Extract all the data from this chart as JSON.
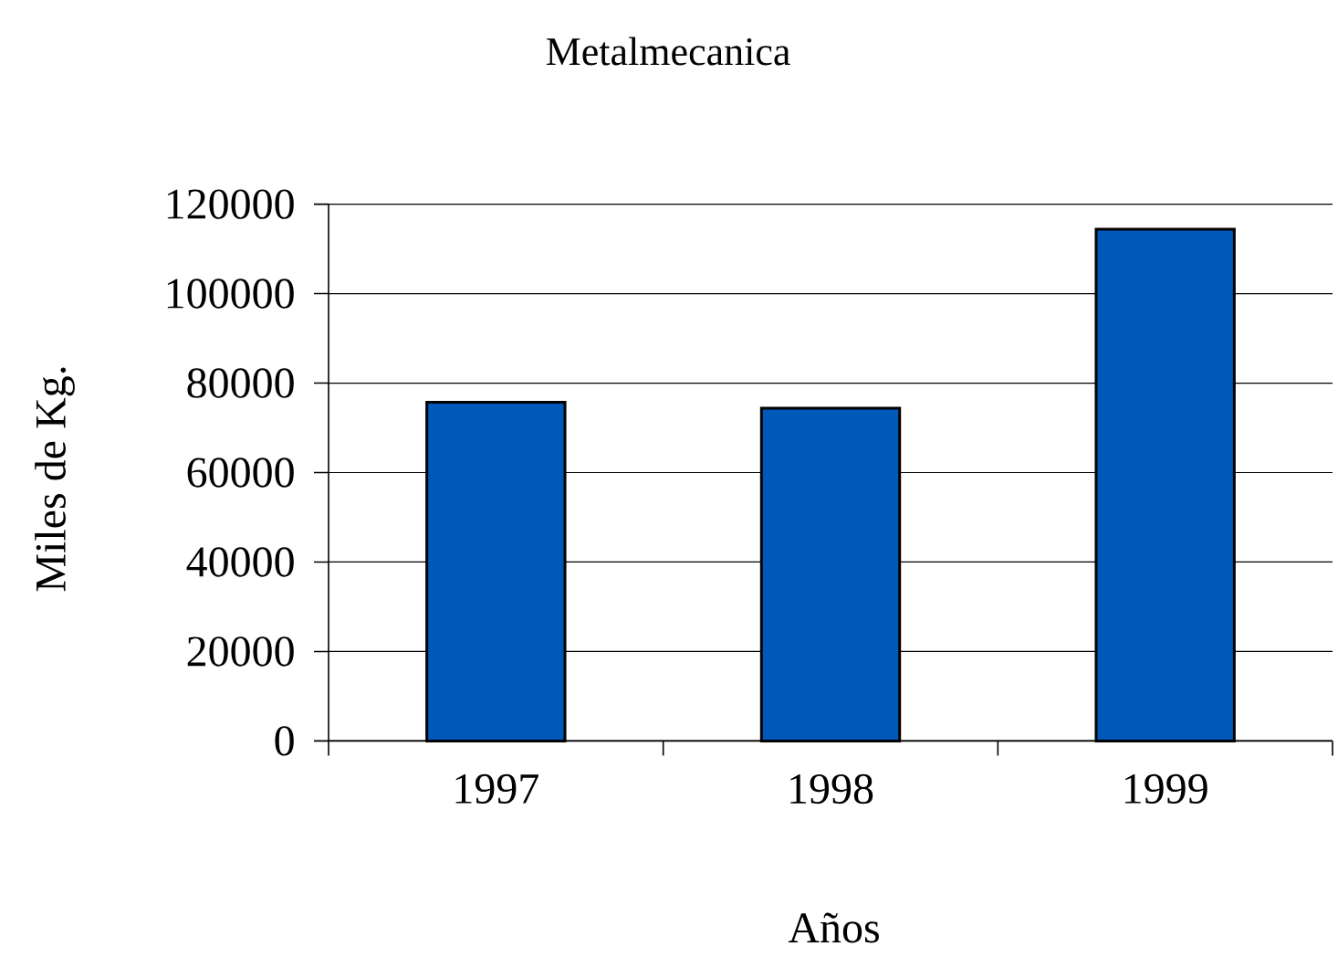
{
  "chart_data": {
    "type": "bar",
    "title": "Metalmecanica",
    "xlabel": "Años",
    "ylabel": "Miles de Kg.",
    "categories": [
      "1997",
      "1998",
      "1999"
    ],
    "values": [
      75700,
      74400,
      114400
    ],
    "color": "#0058b8",
    "ylim": [
      0,
      120000
    ],
    "yticks": [
      0,
      20000,
      40000,
      60000,
      80000,
      100000,
      120000
    ],
    "grid": "y"
  }
}
